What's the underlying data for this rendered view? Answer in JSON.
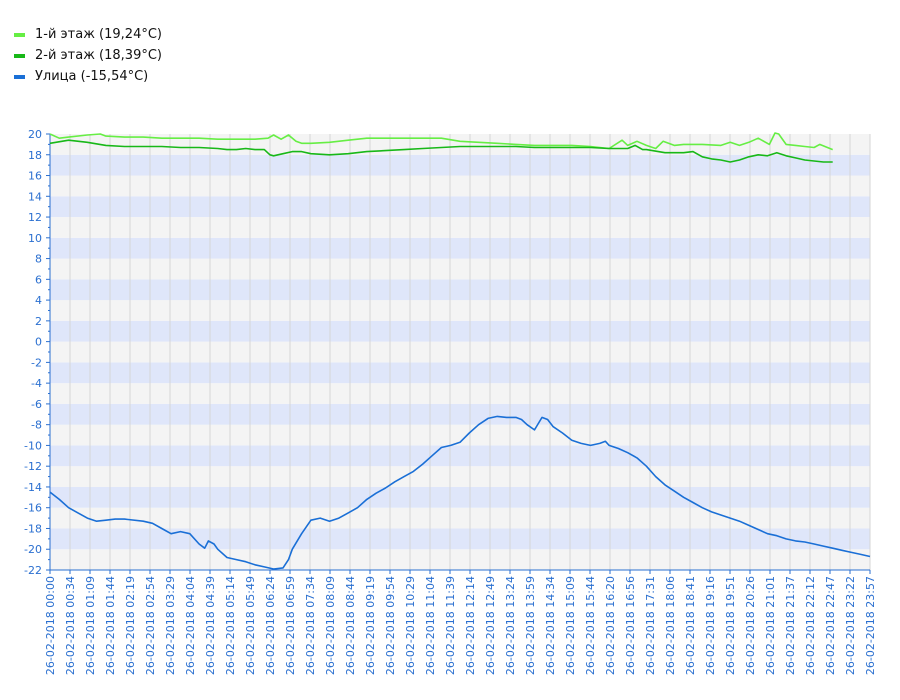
{
  "legend": [
    {
      "label": "1-й этаж (19,24°C)",
      "color": "#66ee44"
    },
    {
      "label": "2-й этаж (18,39°C)",
      "color": "#18b818"
    },
    {
      "label": "Улица (-15,54°C)",
      "color": "#1a6fd6"
    }
  ],
  "chart_data": {
    "type": "line",
    "title": "",
    "xlabel": "",
    "ylabel": "",
    "ylim": [
      -22,
      20
    ],
    "yticks": [
      "20",
      "18",
      "16",
      "14",
      "12",
      "10",
      "8",
      "6",
      "4",
      "2",
      "0",
      "-2",
      "-4",
      "-6",
      "-8",
      "-10",
      "-12",
      "-14",
      "-16",
      "-18",
      "-20",
      "-22"
    ],
    "x_tick_labels": [
      "26-02-2018 00:00",
      "26-02-2018 00:34",
      "26-02-2018 01:09",
      "26-02-2018 01:44",
      "26-02-2018 02:19",
      "26-02-2018 02:54",
      "26-02-2018 03:29",
      "26-02-2018 04:04",
      "26-02-2018 04:39",
      "26-02-2018 05:14",
      "26-02-2018 05:49",
      "26-02-2018 06:24",
      "26-02-2018 06:59",
      "26-02-2018 07:34",
      "26-02-2018 08:09",
      "26-02-2018 08:44",
      "26-02-2018 09:19",
      "26-02-2018 09:54",
      "26-02-2018 10:29",
      "26-02-2018 11:04",
      "26-02-2018 11:39",
      "26-02-2018 12:14",
      "26-02-2018 12:49",
      "26-02-2018 13:24",
      "26-02-2018 13:59",
      "26-02-2018 14:34",
      "26-02-2018 15:09",
      "26-02-2018 15:44",
      "26-02-2018 16:20",
      "26-02-2018 16:56",
      "26-02-2018 17:31",
      "26-02-2018 18:06",
      "26-02-2018 18:41",
      "26-02-2018 19:16",
      "26-02-2018 19:51",
      "26-02-2018 20:26",
      "26-02-2018 21:01",
      "26-02-2018 21:37",
      "26-02-2018 22:12",
      "26-02-2018 22:47",
      "26-02-2018 23:22",
      "26-02-2018 23:57"
    ],
    "grid": true,
    "legend_position": "top-left",
    "series": [
      {
        "name": "1-й этаж (19,24°C)",
        "color": "#66ee44",
        "points": [
          [
            0,
            20.0
          ],
          [
            0.5,
            19.6
          ],
          [
            1,
            19.7
          ],
          [
            2,
            19.9
          ],
          [
            2.7,
            20.0
          ],
          [
            3,
            19.8
          ],
          [
            4,
            19.7
          ],
          [
            5,
            19.7
          ],
          [
            6,
            19.6
          ],
          [
            7,
            19.6
          ],
          [
            8,
            19.6
          ],
          [
            9,
            19.5
          ],
          [
            10,
            19.5
          ],
          [
            11,
            19.5
          ],
          [
            11.7,
            19.6
          ],
          [
            12,
            19.9
          ],
          [
            12.4,
            19.5
          ],
          [
            12.8,
            19.9
          ],
          [
            13.2,
            19.3
          ],
          [
            13.5,
            19.1
          ],
          [
            14,
            19.1
          ],
          [
            15,
            19.2
          ],
          [
            16,
            19.4
          ],
          [
            17,
            19.6
          ],
          [
            18,
            19.6
          ],
          [
            19,
            19.6
          ],
          [
            20,
            19.6
          ],
          [
            21,
            19.6
          ],
          [
            22,
            19.3
          ],
          [
            23,
            19.2
          ],
          [
            24,
            19.1
          ],
          [
            25,
            19.0
          ],
          [
            26,
            18.9
          ],
          [
            27,
            18.9
          ],
          [
            28,
            18.9
          ],
          [
            29,
            18.8
          ],
          [
            30,
            18.6
          ],
          [
            30.7,
            19.4
          ],
          [
            31,
            18.9
          ],
          [
            31.5,
            19.3
          ],
          [
            32,
            18.9
          ],
          [
            32.5,
            18.6
          ],
          [
            32.9,
            19.3
          ],
          [
            33.5,
            18.9
          ],
          [
            34,
            19.0
          ],
          [
            35,
            19.0
          ],
          [
            36,
            18.9
          ],
          [
            36.5,
            19.2
          ],
          [
            37,
            18.9
          ],
          [
            37.5,
            19.2
          ],
          [
            38,
            19.6
          ],
          [
            38.6,
            19.0
          ],
          [
            38.9,
            20.1
          ],
          [
            39.1,
            20.0
          ],
          [
            39.5,
            19.0
          ],
          [
            40,
            18.9
          ],
          [
            40.5,
            18.8
          ],
          [
            41,
            18.7
          ],
          [
            41.3,
            19.0
          ],
          [
            42,
            18.5
          ]
        ]
      },
      {
        "name": "2-й этаж (18,39°C)",
        "color": "#18b818",
        "points": [
          [
            0,
            19.1
          ],
          [
            1,
            19.4
          ],
          [
            2,
            19.2
          ],
          [
            3,
            18.9
          ],
          [
            4,
            18.8
          ],
          [
            5,
            18.8
          ],
          [
            6,
            18.8
          ],
          [
            7,
            18.7
          ],
          [
            8,
            18.7
          ],
          [
            9,
            18.6
          ],
          [
            9.5,
            18.5
          ],
          [
            10,
            18.5
          ],
          [
            10.5,
            18.6
          ],
          [
            11,
            18.5
          ],
          [
            11.5,
            18.5
          ],
          [
            11.8,
            18.0
          ],
          [
            12,
            17.9
          ],
          [
            12.5,
            18.1
          ],
          [
            13,
            18.3
          ],
          [
            13.5,
            18.3
          ],
          [
            14,
            18.1
          ],
          [
            15,
            18.0
          ],
          [
            16,
            18.1
          ],
          [
            17,
            18.3
          ],
          [
            18,
            18.4
          ],
          [
            19,
            18.5
          ],
          [
            20,
            18.6
          ],
          [
            21,
            18.7
          ],
          [
            22,
            18.8
          ],
          [
            23,
            18.8
          ],
          [
            24,
            18.8
          ],
          [
            25,
            18.8
          ],
          [
            26,
            18.7
          ],
          [
            27,
            18.7
          ],
          [
            28,
            18.7
          ],
          [
            29,
            18.7
          ],
          [
            30,
            18.6
          ],
          [
            31,
            18.6
          ],
          [
            31.4,
            18.9
          ],
          [
            31.8,
            18.5
          ],
          [
            32,
            18.5
          ],
          [
            33,
            18.2
          ],
          [
            34,
            18.2
          ],
          [
            34.5,
            18.3
          ],
          [
            35,
            17.8
          ],
          [
            35.5,
            17.6
          ],
          [
            36,
            17.5
          ],
          [
            36.5,
            17.3
          ],
          [
            37,
            17.5
          ],
          [
            37.5,
            17.8
          ],
          [
            38,
            18.0
          ],
          [
            38.5,
            17.9
          ],
          [
            39,
            18.2
          ],
          [
            39.5,
            17.9
          ],
          [
            40,
            17.7
          ],
          [
            40.5,
            17.5
          ],
          [
            41,
            17.4
          ],
          [
            41.5,
            17.3
          ],
          [
            42,
            17.3
          ]
        ]
      },
      {
        "name": "Улица (-15,54°C)",
        "color": "#1a6fd6",
        "points": [
          [
            0,
            -14.5
          ],
          [
            0.5,
            -15.2
          ],
          [
            1,
            -16.0
          ],
          [
            1.5,
            -16.5
          ],
          [
            2,
            -17.0
          ],
          [
            2.5,
            -17.3
          ],
          [
            3,
            -17.2
          ],
          [
            3.5,
            -17.1
          ],
          [
            4,
            -17.1
          ],
          [
            5,
            -17.3
          ],
          [
            5.5,
            -17.5
          ],
          [
            6,
            -18.0
          ],
          [
            6.5,
            -18.5
          ],
          [
            7,
            -18.3
          ],
          [
            7.5,
            -18.5
          ],
          [
            8,
            -19.5
          ],
          [
            8.3,
            -19.9
          ],
          [
            8.5,
            -19.2
          ],
          [
            8.8,
            -19.5
          ],
          [
            9,
            -20.0
          ],
          [
            9.5,
            -20.8
          ],
          [
            10,
            -21.0
          ],
          [
            10.5,
            -21.2
          ],
          [
            11,
            -21.5
          ],
          [
            11.5,
            -21.7
          ],
          [
            12,
            -21.9
          ],
          [
            12.5,
            -21.8
          ],
          [
            12.8,
            -21.0
          ],
          [
            13,
            -20.0
          ],
          [
            13.5,
            -18.5
          ],
          [
            14,
            -17.2
          ],
          [
            14.5,
            -17.0
          ],
          [
            15,
            -17.3
          ],
          [
            15.5,
            -17.0
          ],
          [
            16,
            -16.5
          ],
          [
            16.5,
            -16.0
          ],
          [
            17,
            -15.2
          ],
          [
            17.5,
            -14.6
          ],
          [
            18,
            -14.1
          ],
          [
            18.5,
            -13.5
          ],
          [
            19,
            -13.0
          ],
          [
            19.5,
            -12.5
          ],
          [
            20,
            -11.8
          ],
          [
            20.5,
            -11.0
          ],
          [
            21,
            -10.2
          ],
          [
            21.5,
            -10.0
          ],
          [
            22,
            -9.7
          ],
          [
            22.5,
            -8.8
          ],
          [
            23,
            -8.0
          ],
          [
            23.5,
            -7.4
          ],
          [
            24,
            -7.2
          ],
          [
            24.5,
            -7.3
          ],
          [
            25,
            -7.3
          ],
          [
            25.3,
            -7.5
          ],
          [
            25.6,
            -8.0
          ],
          [
            26,
            -8.5
          ],
          [
            26.4,
            -7.3
          ],
          [
            26.7,
            -7.5
          ],
          [
            27,
            -8.2
          ],
          [
            27.5,
            -8.8
          ],
          [
            28,
            -9.5
          ],
          [
            28.5,
            -9.8
          ],
          [
            29,
            -10.0
          ],
          [
            29.5,
            -9.8
          ],
          [
            29.8,
            -9.6
          ],
          [
            30,
            -10.0
          ],
          [
            30.5,
            -10.3
          ],
          [
            31,
            -10.7
          ],
          [
            31.5,
            -11.2
          ],
          [
            32,
            -12.0
          ],
          [
            32.5,
            -13.0
          ],
          [
            33,
            -13.8
          ],
          [
            33.5,
            -14.4
          ],
          [
            34,
            -15.0
          ],
          [
            34.5,
            -15.5
          ],
          [
            35,
            -16.0
          ],
          [
            35.5,
            -16.4
          ],
          [
            36,
            -16.7
          ],
          [
            36.5,
            -17.0
          ],
          [
            37,
            -17.3
          ],
          [
            37.5,
            -17.7
          ],
          [
            38,
            -18.1
          ],
          [
            38.5,
            -18.5
          ],
          [
            39,
            -18.7
          ],
          [
            39.5,
            -19.0
          ],
          [
            40,
            -19.2
          ],
          [
            40.5,
            -19.3
          ],
          [
            41,
            -19.5
          ],
          [
            41.5,
            -19.7
          ],
          [
            42,
            -19.9
          ],
          [
            42.5,
            -20.1
          ],
          [
            43,
            -20.3
          ],
          [
            43.5,
            -20.5
          ],
          [
            44,
            -20.7
          ]
        ]
      }
    ]
  }
}
